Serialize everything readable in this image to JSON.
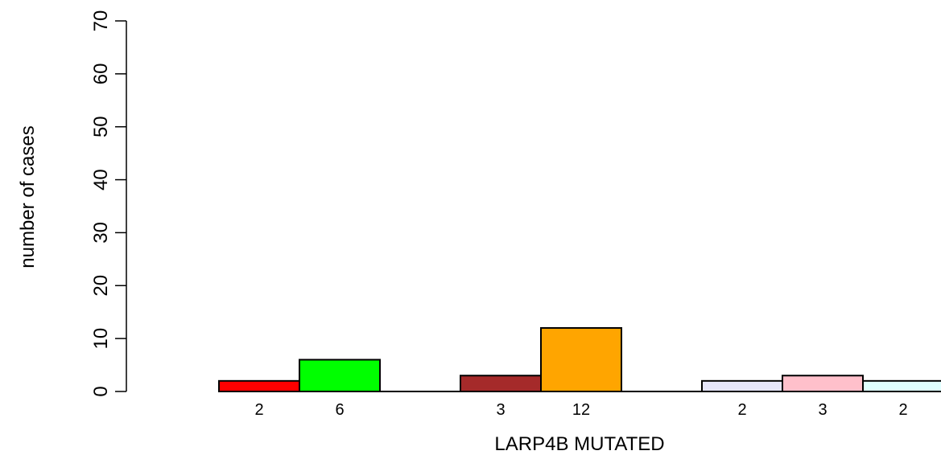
{
  "chart_data": {
    "type": "bar",
    "title": "",
    "xlabel": "LARP4B MUTATED",
    "ylabel": "number of cases",
    "ylim": [
      0,
      70
    ],
    "yticks": [
      0,
      10,
      20,
      30,
      40,
      50,
      60,
      70
    ],
    "grid": false,
    "legend": "none",
    "groups": [
      {
        "bars": [
          {
            "value": 2,
            "label": "2",
            "color": "#ff0000"
          },
          {
            "value": 6,
            "label": "6",
            "color": "#00ff00"
          }
        ]
      },
      {
        "bars": [
          {
            "value": 3,
            "label": "3",
            "color": "#a52a2a"
          },
          {
            "value": 12,
            "label": "12",
            "color": "#ffa500"
          }
        ]
      },
      {
        "bars": [
          {
            "value": 2,
            "label": "2",
            "color": "#e6e6fa"
          },
          {
            "value": 3,
            "label": "3",
            "color": "#ffc0cb"
          },
          {
            "value": 2,
            "label": "2",
            "color": "#e0ffff"
          }
        ]
      }
    ]
  }
}
